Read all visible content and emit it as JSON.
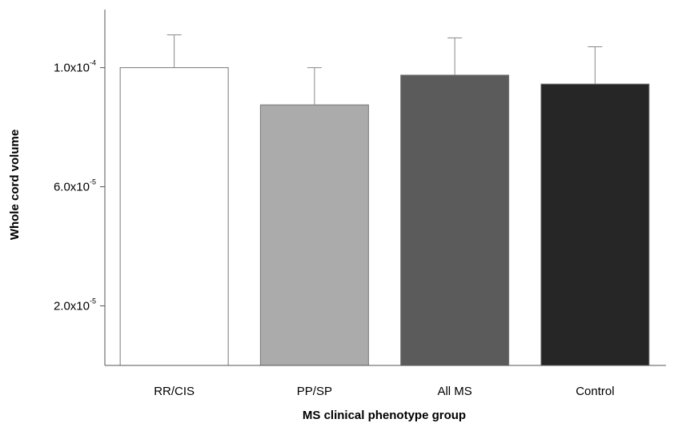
{
  "chart_data": {
    "type": "bar",
    "title": "",
    "xlabel": "MS clinical phenotype group",
    "ylabel": "Whole cord volume",
    "categories": [
      "RR/CIS",
      "PP/SP",
      "All MS",
      "Control"
    ],
    "values": [
      0.0001,
      8.75e-05,
      9.75e-05,
      9.45e-05
    ],
    "error_upper": [
      1.1e-05,
      1.25e-05,
      1.25e-05,
      1.25e-05
    ],
    "bar_colors": [
      "#ffffff",
      "#ababab",
      "#5b5b5b",
      "#262626"
    ],
    "ylim": [
      0,
      0.0001195
    ],
    "yticks": [
      {
        "value": 2e-05,
        "mantissa": "2.0x10",
        "exponent": "-5"
      },
      {
        "value": 6e-05,
        "mantissa": "6.0x10",
        "exponent": "-5"
      },
      {
        "value": 0.0001,
        "mantissa": "1.0x10",
        "exponent": "-4"
      }
    ],
    "grid": false,
    "legend": "none"
  }
}
